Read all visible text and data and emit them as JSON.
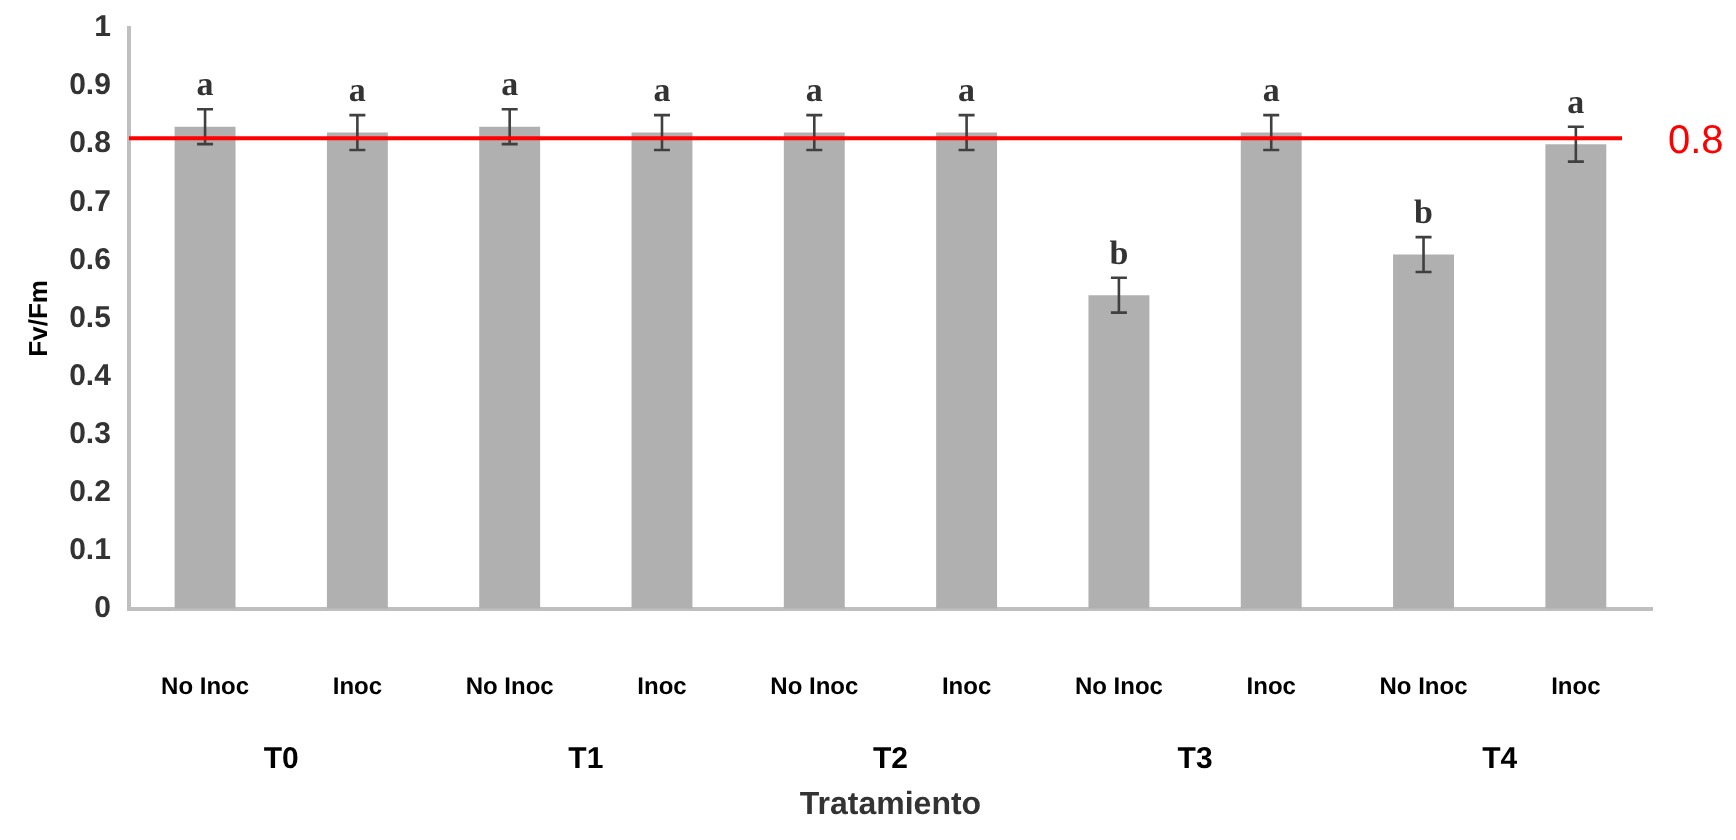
{
  "chart_data": {
    "type": "bar",
    "xlabel": "Tratamiento",
    "ylabel": "Fv/Fm",
    "categories": [
      "No Inoc",
      "Inoc",
      "No Inoc",
      "Inoc",
      "No Inoc",
      "Inoc",
      "No Inoc",
      "Inoc",
      "No Inoc",
      "Inoc"
    ],
    "values": [
      0.83,
      0.82,
      0.83,
      0.82,
      0.82,
      0.82,
      0.54,
      0.82,
      0.61,
      0.8
    ],
    "errors": [
      0.03,
      0.03,
      0.03,
      0.03,
      0.03,
      0.03,
      0.03,
      0.03,
      0.03,
      0.03
    ],
    "value_labels": [
      "a",
      "a",
      "a",
      "a",
      "a",
      "a",
      "b",
      "a",
      "b",
      "a"
    ],
    "color": "#b0b0b0",
    "ylim": [
      0,
      1
    ],
    "yticks": [
      0,
      0.1,
      0.2,
      0.3,
      0.4,
      0.5,
      0.6,
      0.7,
      0.8,
      0.9,
      1
    ],
    "grid": false,
    "legend": false,
    "ref_lines": [
      {
        "axis": "y",
        "value": 0.81,
        "label": "0.8",
        "color": "#ff0000"
      }
    ],
    "annotations": [
      "T0",
      "T1",
      "T2",
      "T3",
      "T4"
    ]
  }
}
